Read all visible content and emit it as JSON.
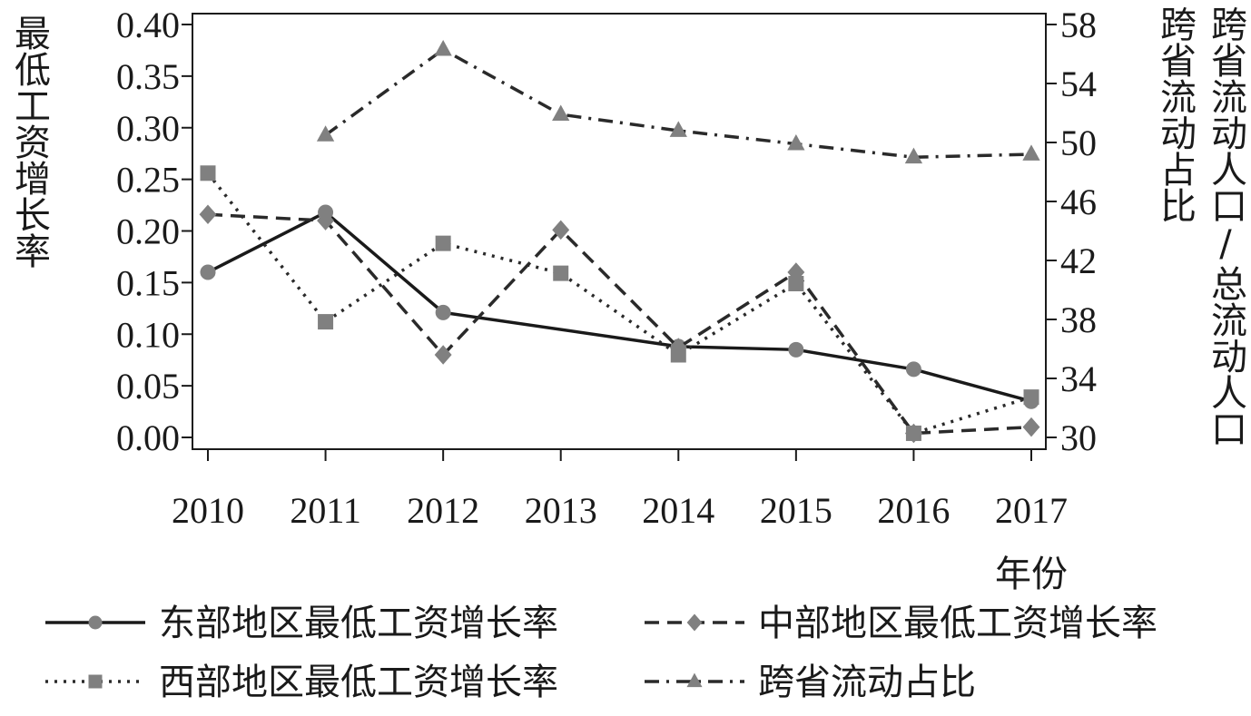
{
  "chart_data": {
    "type": "line",
    "xlabel": "年份",
    "ylabel": "最低工资增长率",
    "y2label": "跨省流动人口/总流动人口",
    "y2label_inner": "跨省流动占比",
    "categories": [
      "2010",
      "2011",
      "2012",
      "2013",
      "2014",
      "2015",
      "2016",
      "2017"
    ],
    "ylim": [
      0,
      0.4
    ],
    "y2lim": [
      30,
      58
    ],
    "yticks": [
      "0.00",
      "0.05",
      "0.10",
      "0.15",
      "0.20",
      "0.25",
      "0.30",
      "0.35",
      "0.40"
    ],
    "y2ticks": [
      "30",
      "34",
      "38",
      "42",
      "46",
      "50",
      "54",
      "58"
    ],
    "legend_position": "bottom",
    "series": [
      {
        "name": "东部地区最低工资增长率",
        "axis": "left",
        "marker": "circle",
        "line": "solid",
        "values": [
          0.16,
          0.218,
          0.121,
          null,
          0.088,
          0.085,
          0.066,
          0.035
        ]
      },
      {
        "name": "中部地区最低工资增长率",
        "axis": "left",
        "marker": "diamond",
        "line": "dashed",
        "values": [
          0.216,
          0.21,
          0.08,
          0.201,
          0.087,
          0.16,
          0.004,
          0.01
        ]
      },
      {
        "name": "西部地区最低工资增长率",
        "axis": "left",
        "marker": "square",
        "line": "dotted",
        "values": [
          0.256,
          0.112,
          0.188,
          0.159,
          0.08,
          0.149,
          0.004,
          0.039
        ]
      },
      {
        "name": "跨省流动占比",
        "axis": "right",
        "marker": "triangle",
        "line": "dashdot",
        "values": [
          null,
          50.5,
          56.3,
          51.9,
          50.8,
          49.9,
          49.0,
          49.2
        ]
      }
    ]
  }
}
